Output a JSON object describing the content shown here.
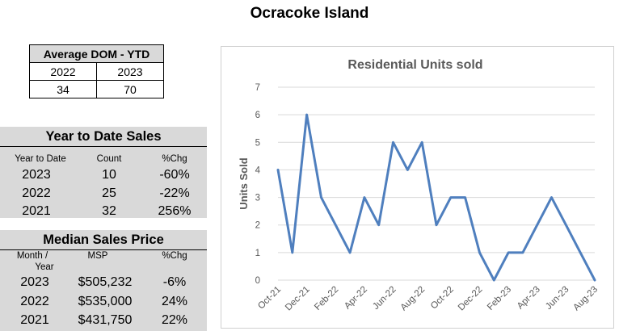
{
  "page": {
    "title": "Ocracoke Island"
  },
  "dom_table": {
    "header": "Average DOM - YTD",
    "years": [
      "2022",
      "2023"
    ],
    "values": [
      "34",
      "70"
    ]
  },
  "ytd_sales": {
    "title": "Year to Date Sales",
    "columns": [
      "Year to Date",
      "Count",
      "%Chg"
    ],
    "rows": [
      {
        "year": "2023",
        "count": "10",
        "chg": "-60%"
      },
      {
        "year": "2022",
        "count": "25",
        "chg": "-22%"
      },
      {
        "year": "2021",
        "count": "32",
        "chg": "256%"
      }
    ]
  },
  "median_price": {
    "title": "Median Sales Price",
    "columns": [
      "Month /",
      "Year",
      "MSP",
      "%Chg"
    ],
    "rows": [
      {
        "year": "2023",
        "msp": "$505,232",
        "chg": "-6%"
      },
      {
        "year": "2022",
        "msp": "$535,000",
        "chg": "24%"
      },
      {
        "year": "2021",
        "msp": "$431,750",
        "chg": "22%"
      }
    ]
  },
  "colors": {
    "line": "#4f7fbe",
    "panel": "#d9d9d9",
    "grid": "#d9d9d9"
  },
  "chart_data": {
    "type": "line",
    "title": "Residential Units sold",
    "xlabel": "",
    "ylabel": "Units Sold",
    "ylim": [
      0,
      7
    ],
    "yticks": [
      0,
      1,
      2,
      3,
      4,
      5,
      6,
      7
    ],
    "grid": true,
    "x": [
      "Oct-21",
      "Nov-21",
      "Dec-21",
      "Jan-22",
      "Feb-22",
      "Mar-22",
      "Apr-22",
      "May-22",
      "Jun-22",
      "Jul-22",
      "Aug-22",
      "Sep-22",
      "Oct-22",
      "Nov-22",
      "Dec-22",
      "Jan-23",
      "Feb-23",
      "Mar-23",
      "Apr-23",
      "May-23",
      "Jun-23",
      "Jul-23",
      "Aug-23"
    ],
    "xticklabels": [
      "Oct-21",
      "Dec-21",
      "Feb-22",
      "Apr-22",
      "Jun-22",
      "Aug-22",
      "Oct-22",
      "Dec-22",
      "Feb-23",
      "Apr-23",
      "Jun-23",
      "Aug-23"
    ],
    "series": [
      {
        "values": [
          4,
          1,
          6,
          3,
          2,
          1,
          3,
          2,
          5,
          4,
          5,
          2,
          3,
          3,
          1,
          0,
          1,
          1,
          2,
          3,
          2,
          1,
          0
        ]
      }
    ]
  }
}
